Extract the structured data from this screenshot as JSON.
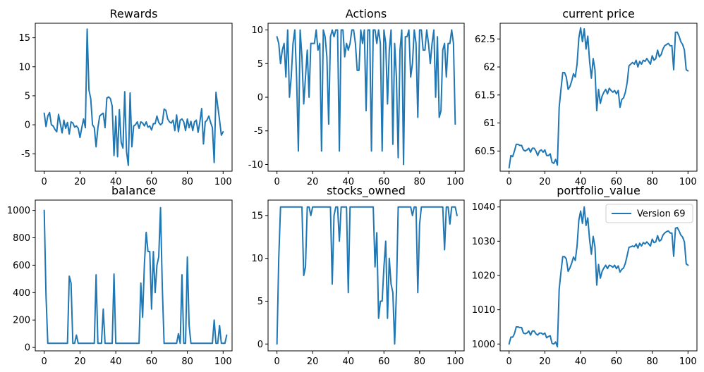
{
  "figure": {
    "background": "#ffffff",
    "line_color": "#1f77b4"
  },
  "chart_data": [
    {
      "type": "line",
      "title": "Rewards",
      "xlabel": "",
      "ylabel": "",
      "xlim": [
        -5,
        105
      ],
      "ylim": [
        -8,
        17.5
      ],
      "xticks": [
        0,
        20,
        40,
        60,
        80,
        100
      ],
      "yticks": [
        -5,
        0,
        5,
        10,
        15
      ],
      "grid": false,
      "series": [
        {
          "values": [
            2.0,
            -0.3,
            1.5,
            2.1,
            0.0,
            -0.2,
            -0.8,
            -1.2,
            1.8,
            0.2,
            -1.4,
            0.8,
            -0.6,
            0.4,
            -1.6,
            0.5,
            0.3,
            -0.4,
            -0.2,
            -0.6,
            -2.2,
            -0.5,
            1.0,
            -0.5,
            16.5,
            6.0,
            4.5,
            0.0,
            -0.5,
            -3.8,
            -0.5,
            1.5,
            1.8,
            2.0,
            -0.5,
            4.6,
            4.8,
            4.5,
            3.2,
            -5.3,
            1.5,
            -5.5,
            2.6,
            -3.0,
            -4.0,
            5.7,
            -4.6,
            -7.0,
            5.5,
            -3.8,
            -0.2,
            0.0,
            0.5,
            -0.6,
            0.5,
            0.3,
            -0.2,
            0.5,
            -0.4,
            -0.2,
            -0.9,
            0.2,
            0.2,
            1.5,
            0.4,
            0.0,
            0.3,
            2.7,
            2.5,
            1.0,
            0.5,
            0.3,
            0.8,
            -1.0,
            1.7,
            -1.2,
            0.8,
            1.0,
            0.5,
            -1.0,
            1.0,
            -0.5,
            0.6,
            -1.0,
            0.5,
            0.8,
            -1.3,
            0.5,
            2.8,
            -3.3,
            0.5,
            0.8,
            1.5,
            0.4,
            -0.5,
            -6.5,
            5.6,
            3.2,
            0.8,
            -1.8,
            -1.2
          ]
        }
      ]
    },
    {
      "type": "line",
      "title": "Actions",
      "xlabel": "",
      "ylabel": "",
      "xlim": [
        -5,
        105
      ],
      "ylim": [
        -11,
        11
      ],
      "xticks": [
        0,
        20,
        40,
        60,
        80,
        100
      ],
      "yticks": [
        -10,
        -5,
        0,
        5,
        10
      ],
      "grid": false,
      "series": [
        {
          "values": [
            9,
            8,
            5,
            7,
            8,
            3,
            10,
            0,
            3,
            8,
            10,
            3,
            -8,
            10,
            6,
            -1,
            3,
            7,
            0,
            8,
            8,
            8,
            10,
            7,
            8,
            -8,
            10,
            9,
            6,
            -4,
            9,
            10,
            9,
            10,
            10,
            -8,
            10,
            10,
            6,
            8,
            7,
            8,
            10,
            10,
            8,
            4,
            4,
            10,
            8,
            10,
            -2,
            10,
            10,
            -8,
            10,
            10,
            8,
            10,
            8,
            -8,
            10,
            8,
            -1,
            7,
            10,
            -7,
            8,
            3,
            -9,
            7,
            10,
            -10,
            9,
            9,
            10,
            3,
            5,
            10,
            8,
            -3,
            10,
            10,
            7,
            7,
            10,
            8,
            5,
            8,
            10,
            0,
            9,
            -3,
            -2,
            7,
            8,
            3,
            8,
            8,
            10,
            8,
            -4
          ]
        }
      ]
    },
    {
      "type": "line",
      "title": "current price",
      "xlabel": "",
      "ylabel": "",
      "xlim": [
        -5,
        105
      ],
      "ylim": [
        60.14,
        62.78
      ],
      "xticks": [
        0,
        20,
        40,
        60,
        80,
        100
      ],
      "yticks": [
        60.5,
        61.0,
        61.5,
        62.0,
        62.5
      ],
      "grid": false,
      "series": [
        {
          "values": [
            60.2,
            60.42,
            60.4,
            60.5,
            60.62,
            60.62,
            60.6,
            60.6,
            60.52,
            60.5,
            60.52,
            60.55,
            60.48,
            60.55,
            60.55,
            60.5,
            60.42,
            60.5,
            60.52,
            60.48,
            60.52,
            60.42,
            60.42,
            60.45,
            60.3,
            60.28,
            60.35,
            60.25,
            61.28,
            61.6,
            61.9,
            61.9,
            61.82,
            61.6,
            61.65,
            61.75,
            61.88,
            61.82,
            62.05,
            62.52,
            62.7,
            62.45,
            62.68,
            62.32,
            62.55,
            62.1,
            61.8,
            62.15,
            61.95,
            61.22,
            61.6,
            61.35,
            61.48,
            61.55,
            61.6,
            61.52,
            61.62,
            61.58,
            61.55,
            61.58,
            61.52,
            61.58,
            61.28,
            61.42,
            61.45,
            61.55,
            61.72,
            62.02,
            62.05,
            62.08,
            62.05,
            62.12,
            62.0,
            62.1,
            62.05,
            62.12,
            62.1,
            62.15,
            62.1,
            62.05,
            62.2,
            62.12,
            62.15,
            62.3,
            62.18,
            62.22,
            62.32,
            62.38,
            62.4,
            62.42,
            62.38,
            62.38,
            61.95,
            62.62,
            62.62,
            62.55,
            62.45,
            62.4,
            62.3,
            61.95,
            61.93
          ]
        }
      ]
    },
    {
      "type": "line",
      "title": "balance",
      "xlabel": "",
      "ylabel": "",
      "xlim": [
        -5,
        105
      ],
      "ylim": [
        -25,
        1075
      ],
      "xticks": [
        0,
        20,
        40,
        60,
        80,
        100
      ],
      "yticks": [
        0,
        200,
        400,
        600,
        800,
        1000
      ],
      "grid": false,
      "series": [
        {
          "values": [
            1000,
            380,
            30,
            30,
            30,
            30,
            30,
            30,
            30,
            30,
            30,
            30,
            30,
            30,
            520,
            470,
            30,
            30,
            90,
            30,
            30,
            30,
            30,
            30,
            30,
            30,
            30,
            30,
            30,
            530,
            30,
            30,
            30,
            280,
            30,
            30,
            30,
            30,
            30,
            535,
            30,
            30,
            30,
            30,
            30,
            30,
            30,
            30,
            30,
            30,
            30,
            30,
            30,
            30,
            470,
            220,
            610,
            840,
            700,
            700,
            280,
            700,
            400,
            600,
            660,
            1020,
            440,
            30,
            30,
            30,
            30,
            30,
            30,
            30,
            30,
            100,
            30,
            530,
            30,
            30,
            660,
            160,
            30,
            30,
            30,
            30,
            30,
            30,
            30,
            30,
            30,
            30,
            30,
            30,
            30,
            200,
            30,
            30,
            160,
            30,
            30,
            30,
            90
          ]
        }
      ]
    },
    {
      "type": "line",
      "title": "stocks_owned",
      "xlabel": "",
      "ylabel": "",
      "xlim": [
        -5,
        105
      ],
      "ylim": [
        -0.8,
        16.8
      ],
      "xticks": [
        0,
        20,
        40,
        60,
        80,
        100
      ],
      "yticks": [
        0,
        5,
        10,
        15
      ],
      "grid": false,
      "series": [
        {
          "values": [
            0,
            10,
            16,
            16,
            16,
            16,
            16,
            16,
            16,
            16,
            16,
            16,
            16,
            16,
            16,
            8,
            9,
            16,
            16,
            15,
            16,
            16,
            16,
            16,
            16,
            16,
            16,
            16,
            16,
            16,
            16,
            7,
            15,
            16,
            16,
            12,
            16,
            16,
            16,
            16,
            6,
            16,
            16,
            16,
            16,
            16,
            16,
            16,
            16,
            16,
            16,
            16,
            16,
            16,
            16,
            9,
            13,
            3,
            5,
            5,
            9,
            12,
            3,
            10,
            7,
            6,
            0,
            6,
            16,
            16,
            16,
            16,
            16,
            16,
            16,
            16,
            15,
            16,
            16,
            6,
            14,
            16,
            16,
            16,
            16,
            16,
            16,
            16,
            16,
            16,
            16,
            16,
            16,
            16,
            11,
            16,
            16,
            14,
            16,
            16,
            16,
            15
          ]
        }
      ]
    },
    {
      "type": "line",
      "title": "portfolio_value",
      "xlabel": "",
      "ylabel": "",
      "xlim": [
        -5,
        105
      ],
      "ylim": [
        998,
        1042
      ],
      "xticks": [
        0,
        20,
        40,
        60,
        80,
        100
      ],
      "yticks": [
        1000,
        1010,
        1020,
        1030,
        1040
      ],
      "grid": false,
      "legend": {
        "position": "upper right",
        "entries": [
          "Version 69"
        ]
      },
      "series": [
        {
          "name": "Version 69",
          "values": [
            1000,
            1002,
            1002,
            1003,
            1005,
            1005,
            1004.8,
            1004.8,
            1003.2,
            1003,
            1003.2,
            1003.8,
            1002.6,
            1003.8,
            1003.8,
            1003,
            1002.6,
            1003.2,
            1003.2,
            1002.8,
            1003.2,
            1001.8,
            1002.2,
            1002.4,
            1000.2,
            1000,
            1000.6,
            999.2,
            1016,
            1021,
            1025.5,
            1025.5,
            1024.8,
            1021.2,
            1022.2,
            1023.6,
            1025.4,
            1024.4,
            1028.6,
            1036.2,
            1038.8,
            1035.2,
            1040,
            1034.6,
            1036.8,
            1030.4,
            1026.2,
            1031.4,
            1028.4,
            1017.2,
            1023.2,
            1019.2,
            1021.2,
            1022.2,
            1023,
            1022,
            1023,
            1022.8,
            1022.4,
            1023,
            1022,
            1022.8,
            1021,
            1021.8,
            1022.2,
            1023.6,
            1025.8,
            1028.2,
            1028.4,
            1028.6,
            1028.4,
            1029.2,
            1028,
            1029.4,
            1028.6,
            1029.6,
            1029.2,
            1029.8,
            1029.2,
            1028.6,
            1030.6,
            1029.6,
            1029.8,
            1031.6,
            1030,
            1030.4,
            1031.8,
            1032.4,
            1032.8,
            1033,
            1032.4,
            1032.4,
            1025.6,
            1033.8,
            1034,
            1033,
            1031.8,
            1031.2,
            1029.8,
            1023.4,
            1023
          ]
        }
      ]
    }
  ]
}
